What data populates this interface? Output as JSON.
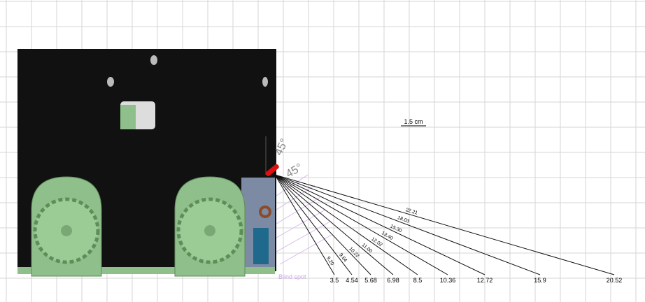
{
  "annotations": {
    "scale": "1.5 cm",
    "angle_upper": "45°",
    "angle_lower": "45°",
    "blind_spot": "Blind spot"
  },
  "rays": [
    {
      "distance": "3.5",
      "length": "9.20"
    },
    {
      "distance": "4.54",
      "length": "9.64"
    },
    {
      "distance": "5.68",
      "length": "10.22"
    },
    {
      "distance": "6.98",
      "length": "11.00"
    },
    {
      "distance": "8.5",
      "length": "12.02"
    },
    {
      "distance": "10.36",
      "length": "13.40"
    },
    {
      "distance": "12.72",
      "length": "15.30"
    },
    {
      "distance": "15.9",
      "length": "18.03"
    },
    {
      "distance": "20.52",
      "length": "22.21"
    }
  ]
}
